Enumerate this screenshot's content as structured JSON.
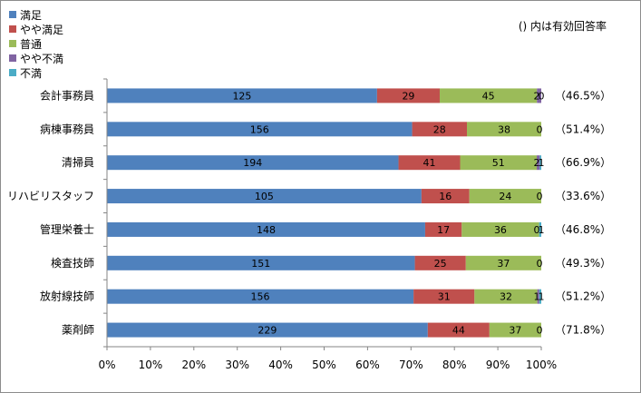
{
  "chart_data": {
    "type": "bar",
    "orientation": "horizontal",
    "stacked": "percent",
    "categories": [
      "会計事務員",
      "病棟事務員",
      "清掃員",
      "リハビリスタッフ",
      "管理栄養士",
      "検査技師",
      "放射線技師",
      "薬剤師"
    ],
    "series": [
      {
        "name": "満足",
        "color": "#4f81bd",
        "values": [
          125,
          156,
          194,
          105,
          148,
          151,
          156,
          229
        ]
      },
      {
        "name": "やや満足",
        "color": "#c0504d",
        "values": [
          29,
          28,
          41,
          16,
          17,
          25,
          31,
          44
        ]
      },
      {
        "name": "普通",
        "color": "#9bbb59",
        "values": [
          45,
          38,
          51,
          24,
          36,
          37,
          32,
          37
        ]
      },
      {
        "name": "やや不満",
        "color": "#8064a2",
        "values": [
          2,
          0,
          2,
          0,
          0,
          0,
          1,
          0
        ]
      },
      {
        "name": "不満",
        "color": "#4bacc6",
        "values": [
          0,
          0,
          1,
          0,
          1,
          0,
          1,
          0
        ]
      }
    ],
    "response_rates": [
      "（46.5%）",
      "（51.4%）",
      "（66.9%）",
      "（33.6%）",
      "（46.8%）",
      "（49.3%）",
      "（51.2%）",
      "（71.8%）"
    ],
    "xticks": [
      "0%",
      "10%",
      "20%",
      "30%",
      "40%",
      "50%",
      "60%",
      "70%",
      "80%",
      "90%",
      "100%"
    ],
    "xlim": [
      0,
      100
    ],
    "legend_position": "top-left",
    "grid": false
  },
  "note": "() 内は有効回答率"
}
